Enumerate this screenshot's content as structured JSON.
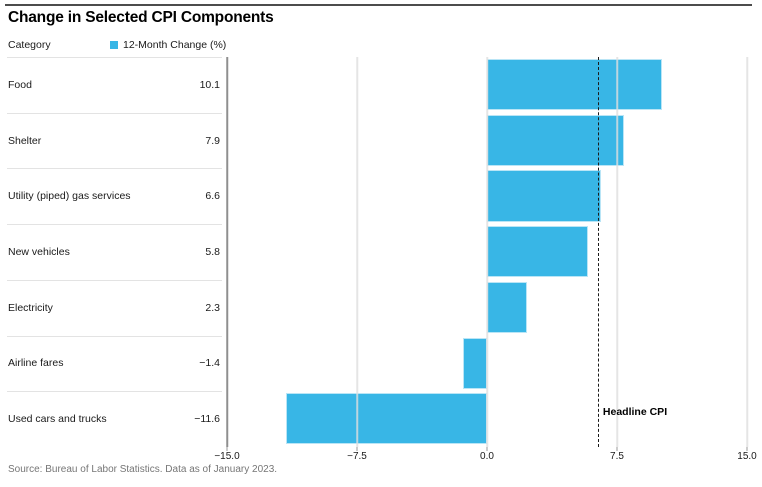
{
  "title": "Change in Selected CPI Components",
  "legend": {
    "category_label": "Category",
    "series_label": "12-Month Change (%)"
  },
  "source_note": "Source: Bureau of Labor Statistics. Data as of January 2023.",
  "colors": {
    "bar": "#38b6e6",
    "reference_line": "#1a1a1a",
    "axis_line": "#8f8f8f",
    "gridline": "#dedede",
    "divider": "#e3e3e3",
    "top_rule": "#4c4c4c"
  },
  "chart_data": {
    "type": "bar",
    "orientation": "horizontal",
    "title": "Change in Selected CPI Components",
    "series_name": "12-Month Change (%)",
    "categories": [
      "Food",
      "Shelter",
      "Utility (piped) gas services",
      "New vehicles",
      "Electricity",
      "Airline fares",
      "Used cars and trucks"
    ],
    "values": [
      10.1,
      7.9,
      6.6,
      5.8,
      2.3,
      -1.4,
      -11.6
    ],
    "value_labels": [
      "10.1",
      "7.9",
      "6.6",
      "5.8",
      "2.3",
      "−1.4",
      "−11.6"
    ],
    "xlim": [
      -15,
      15
    ],
    "x_ticks": [
      -15,
      -7.5,
      0,
      7.5,
      15
    ],
    "x_tick_labels": [
      "−15.0",
      "−7.5",
      "0.0",
      "7.5",
      "15.0"
    ],
    "grid": "vertical",
    "legend_position": "top",
    "reference_line": {
      "value": 6.4,
      "label": "Headline CPI"
    }
  }
}
